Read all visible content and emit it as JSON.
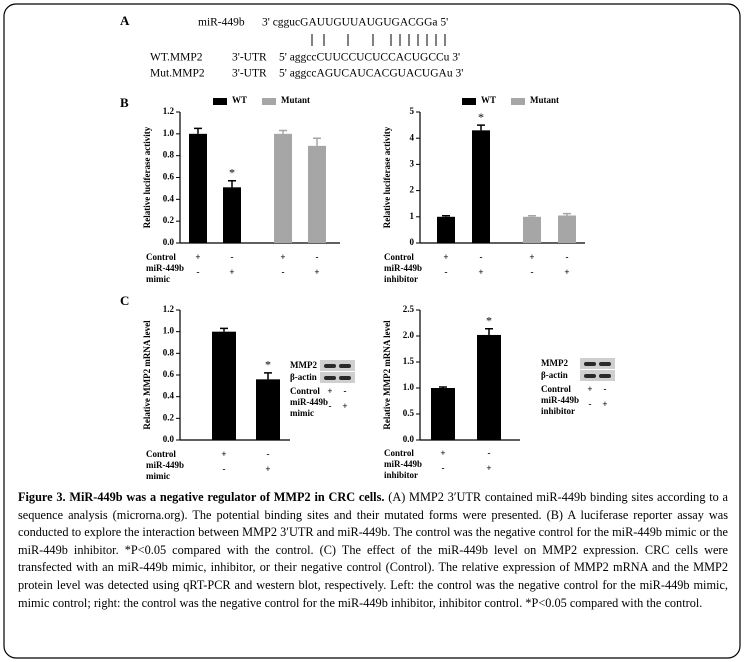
{
  "panel_labels": [
    "A",
    "B",
    "C"
  ],
  "sequences": [
    {
      "name": "miR-449b",
      "seq": "3' cggucGAUUGUUAUGUGACGGa 5'"
    },
    {
      "name": "WT.MMP2",
      "region": "3'-UTR",
      "seq": "5' aggccCUUCCUCUCCACUGCCu 3'"
    },
    {
      "name": "Mut.MMP2",
      "region": "3'-UTR",
      "seq": "5' aggccAGUCAUCACGUACUGAu 3'"
    }
  ],
  "chart_data": [
    {
      "type": "bar",
      "y_label": "Relative luciferase activity",
      "ylim": [
        0,
        1.2
      ],
      "yticks": [
        {
          "value": 0,
          "label": "0.0"
        },
        0.2,
        0.4,
        0.6,
        0.8,
        {
          "value": 1,
          "label": "1.0"
        },
        1.2
      ],
      "categories": [
        null,
        null,
        null,
        null
      ],
      "series": [
        {
          "name": "WT",
          "color": "#000000",
          "values": [
            1.0,
            0.51,
            null,
            null
          ],
          "errors": [
            0.05,
            0.06,
            null,
            null
          ],
          "annotations": [
            null,
            "*",
            null,
            null
          ]
        },
        {
          "name": "Mutant",
          "color": "#a6a6a6",
          "values": [
            null,
            null,
            1.0,
            0.89
          ],
          "errors": [
            null,
            null,
            0.03,
            0.07
          ],
          "annotations": [
            null,
            null,
            null,
            null
          ]
        }
      ],
      "conditions": [
        {
          "label": [
            "Control"
          ],
          "marks": [
            "+",
            "-",
            "+",
            "-"
          ]
        },
        {
          "label": [
            "miR-449b",
            "mimic"
          ],
          "marks": [
            "-",
            "+",
            "-",
            "+"
          ]
        }
      ]
    },
    {
      "type": "bar",
      "y_label": "Relative luciferase activity",
      "ylim": [
        0,
        5
      ],
      "yticks": [
        0,
        1,
        2,
        3,
        4,
        5
      ],
      "categories": [
        null,
        null,
        null,
        null
      ],
      "series": [
        {
          "name": "WT",
          "color": "#000000",
          "values": [
            1.0,
            4.3,
            null,
            null
          ],
          "errors": [
            0.04,
            0.2,
            null,
            null
          ],
          "annotations": [
            null,
            "*",
            null,
            null
          ]
        },
        {
          "name": "Mutant",
          "color": "#a6a6a6",
          "values": [
            null,
            null,
            1.0,
            1.05
          ],
          "errors": [
            null,
            null,
            0.04,
            0.07
          ],
          "annotations": [
            null,
            null,
            null,
            null
          ]
        }
      ],
      "conditions": [
        {
          "label": [
            "Control"
          ],
          "marks": [
            "+",
            "-",
            "+",
            "-"
          ]
        },
        {
          "label": [
            "miR-449b",
            "inhibitor"
          ],
          "marks": [
            "-",
            "+",
            "-",
            "+"
          ]
        }
      ]
    },
    {
      "type": "bar",
      "y_label": "Relative MMP2 mRNA level",
      "ylim": [
        0,
        1.2
      ],
      "yticks": [
        {
          "value": 0,
          "label": "0.0"
        },
        0.2,
        0.4,
        0.6,
        0.8,
        {
          "value": 1,
          "label": "1.0"
        },
        1.2
      ],
      "categories": [
        null,
        null
      ],
      "series": [
        {
          "color": "#000000",
          "values": [
            1.0,
            0.56
          ],
          "errors": [
            0.03,
            0.06
          ],
          "annotations": [
            null,
            "*"
          ]
        }
      ],
      "conditions": [
        {
          "label": [
            "Control"
          ],
          "marks": [
            "+",
            "-"
          ]
        },
        {
          "label": [
            "miR-449b",
            "mimic"
          ],
          "marks": [
            "-",
            "+"
          ]
        }
      ],
      "blot": {
        "rows": [
          "MMP2",
          "β-actin"
        ],
        "conditions": [
          {
            "label": [
              "Control"
            ],
            "marks": [
              "+",
              "-"
            ]
          },
          {
            "label": [
              "miR-449b",
              "mimic"
            ],
            "marks": [
              "-",
              "+"
            ]
          }
        ]
      }
    },
    {
      "type": "bar",
      "y_label": "Relative MMP2 mRNA level",
      "ylim": [
        0,
        2.5
      ],
      "yticks": [
        {
          "value": 0,
          "label": "0.0"
        },
        0.5,
        {
          "value": 1,
          "label": "1.0"
        },
        1.5,
        {
          "value": 2,
          "label": "2.0"
        },
        2.5
      ],
      "categories": [
        null,
        null
      ],
      "series": [
        {
          "color": "#000000",
          "values": [
            1.0,
            2.02
          ],
          "errors": [
            0.02,
            0.12
          ],
          "annotations": [
            null,
            "*"
          ]
        }
      ],
      "conditions": [
        {
          "label": [
            "Control"
          ],
          "marks": [
            "+",
            "-"
          ]
        },
        {
          "label": [
            "miR-449b",
            "inhibitor"
          ],
          "marks": [
            "-",
            "+"
          ]
        }
      ],
      "blot": {
        "rows": [
          "MMP2",
          "β-actin"
        ],
        "conditions": [
          {
            "label": [
              "Control"
            ],
            "marks": [
              "+",
              "-"
            ]
          },
          {
            "label": [
              "miR-449b",
              "inhibitor"
            ],
            "marks": [
              "-",
              "+"
            ]
          }
        ]
      }
    }
  ],
  "caption": {
    "title": "Figure 3. MiR-449b was a negative regulator of MMP2 in CRC cells.",
    "text": "(A) MMP2 3′UTR contained miR-449b binding sites according to a sequence analysis (microrna.org). The potential binding sites and their mutated forms were presented. (B) A luciferase reporter assay was conducted to explore the interaction between MMP2 3′UTR and miR-449b. The control was the negative control for the miR-449b mimic or the miR-449b inhibitor. *P<0.05 compared with the control. (C) The effect of the miR-449b level on MMP2 expression. CRC cells were transfected with an miR-449b mimic, inhibitor, or their negative control (Control). The relative expression of MMP2 mRNA and the MMP2 protein level was detected using qRT-PCR and western blot, respectively. Left: the control was the negative control for the miR-449b mimic, mimic control; right: the control was the negative control for the miR-449b inhibitor, inhibitor control. *P<0.05 compared with the control."
  }
}
